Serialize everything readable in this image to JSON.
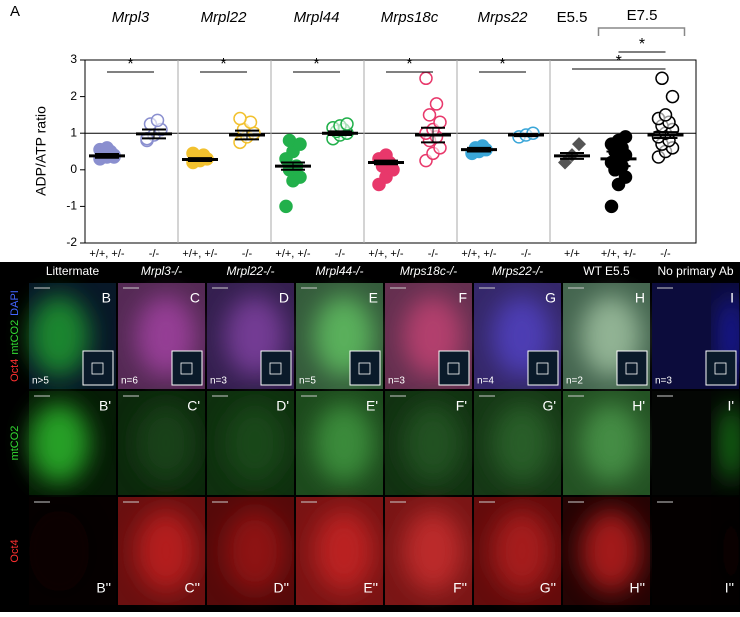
{
  "chart_data": {
    "type": "strip",
    "panel_label": "A",
    "ylabel": "ADP/ATP ratio",
    "ylim": [
      -2,
      3
    ],
    "yticks": [
      3,
      2,
      1,
      0,
      -1,
      -2
    ],
    "refline": 1,
    "group_bracket": "E7.5",
    "groups": [
      {
        "label": "Mrpl3",
        "italic": true,
        "categories": [
          {
            "name": "+/+, +/-",
            "color": "#8a8fcf",
            "marker": "circle",
            "filled": true,
            "mean": 0.38,
            "sem": 0.05,
            "values": [
              0.3,
              0.35,
              0.4,
              0.45,
              0.5,
              0.55,
              0.6,
              0.35
            ]
          },
          {
            "name": "-/-",
            "color": "#8a8fcf",
            "marker": "circle",
            "filled": false,
            "mean": 0.98,
            "sem": 0.12,
            "values": [
              0.8,
              0.95,
              1.1,
              1.25,
              1.35,
              0.85
            ]
          }
        ]
      },
      {
        "label": "Mrpl22",
        "italic": true,
        "categories": [
          {
            "name": "+/+, +/-",
            "color": "#f2c12e",
            "marker": "circle",
            "filled": true,
            "mean": 0.28,
            "sem": 0.04,
            "values": [
              0.2,
              0.25,
              0.3,
              0.35,
              0.4,
              0.45
            ]
          },
          {
            "name": "-/-",
            "color": "#f2c12e",
            "marker": "circle",
            "filled": false,
            "mean": 0.95,
            "sem": 0.12,
            "values": [
              0.75,
              0.9,
              1.0,
              1.1,
              1.3,
              1.4
            ]
          }
        ]
      },
      {
        "label": "Mrpl44",
        "italic": true,
        "categories": [
          {
            "name": "+/+, +/-",
            "color": "#22b04b",
            "marker": "circle",
            "filled": true,
            "mean": 0.1,
            "sem": 0.1,
            "values": [
              -1.0,
              -0.3,
              -0.2,
              0,
              0.1,
              0.3,
              0.5,
              0.7,
              0.8
            ]
          },
          {
            "name": "-/-",
            "color": "#22b04b",
            "marker": "circle",
            "filled": false,
            "mean": 1.0,
            "sem": 0.05,
            "values": [
              0.85,
              0.95,
              1.0,
              1.05,
              1.1,
              1.15,
              1.2,
              1.25
            ]
          }
        ]
      },
      {
        "label": "Mrps18c",
        "italic": true,
        "categories": [
          {
            "name": "+/+, +/-",
            "color": "#e8386b",
            "marker": "circle",
            "filled": true,
            "mean": 0.2,
            "sem": 0.05,
            "values": [
              -0.4,
              -0.2,
              0,
              0.1,
              0.2,
              0.3,
              0.4
            ]
          },
          {
            "name": "-/-",
            "color": "#e8386b",
            "marker": "circle",
            "filled": false,
            "mean": 0.95,
            "sem": 0.2,
            "values": [
              0.25,
              0.45,
              0.6,
              0.8,
              0.9,
              1.0,
              1.1,
              1.3,
              1.5,
              1.8,
              2.5
            ]
          }
        ]
      },
      {
        "label": "Mrps22",
        "italic": true,
        "categories": [
          {
            "name": "+/+, +/-",
            "color": "#3aa6d8",
            "marker": "circle",
            "filled": true,
            "mean": 0.55,
            "sem": 0.05,
            "values": [
              0.45,
              0.5,
              0.55,
              0.6,
              0.65
            ]
          },
          {
            "name": "-/-",
            "color": "#3aa6d8",
            "marker": "circle",
            "filled": false,
            "mean": 0.95,
            "sem": 0.03,
            "values": [
              0.9,
              0.95,
              1.0
            ]
          }
        ]
      },
      {
        "label": "E5.5",
        "italic": false,
        "categories": [
          {
            "name": "+/+",
            "color": "#555555",
            "marker": "diamond",
            "filled": true,
            "mean": 0.38,
            "sem": 0.08,
            "values": [
              0.2,
              0.4,
              0.7
            ]
          }
        ]
      },
      {
        "label": "E7.5",
        "italic": false,
        "categories": [
          {
            "name": "+/+, +/-",
            "color": "#000000",
            "marker": "circle",
            "filled": true,
            "mean": 0.3,
            "sem": 0.2,
            "values": [
              -1.0,
              -0.4,
              -0.2,
              0,
              0.1,
              0.2,
              0.3,
              0.4,
              0.5,
              0.6,
              0.7,
              0.8,
              0.9
            ]
          },
          {
            "name": "-/-",
            "color": "#000000",
            "marker": "circle",
            "filled": false,
            "mean": 0.95,
            "sem": 0.08,
            "values": [
              0.35,
              0.5,
              0.6,
              0.7,
              0.8,
              0.9,
              1.0,
              1.1,
              1.2,
              1.3,
              1.4,
              1.5,
              2.0,
              2.5
            ]
          }
        ]
      }
    ],
    "significance": [
      "*",
      "*",
      "*",
      "*",
      "*",
      "*",
      "*"
    ]
  },
  "images": {
    "row_labels": [
      [
        "Oct4",
        "mtCO2",
        "DAPI"
      ],
      [
        "mtCO2"
      ],
      [
        "Oct4"
      ]
    ],
    "columns": [
      {
        "header": "Littermate",
        "italic": false,
        "n": "n>5",
        "panels": [
          "B",
          "B'",
          "B''"
        ]
      },
      {
        "header": "Mrpl3-/-",
        "italic": true,
        "n": "n=6",
        "panels": [
          "C",
          "C'",
          "C''"
        ]
      },
      {
        "header": "Mrpl22-/-",
        "italic": true,
        "n": "n=3",
        "panels": [
          "D",
          "D'",
          "D''"
        ]
      },
      {
        "header": "Mrpl44-/-",
        "italic": true,
        "n": "n=5",
        "panels": [
          "E",
          "E'",
          "E''"
        ]
      },
      {
        "header": "Mrps18c-/-",
        "italic": true,
        "n": "n=3",
        "panels": [
          "F",
          "F'",
          "F''"
        ]
      },
      {
        "header": "Mrps22-/-",
        "italic": true,
        "n": "n=4",
        "panels": [
          "G",
          "G'",
          "G''"
        ]
      },
      {
        "header": "WT E5.5",
        "italic": false,
        "n": "n=2",
        "panels": [
          "H",
          "H'",
          "H''"
        ]
      },
      {
        "header": "No primary Ab",
        "italic": false,
        "n": "n=3",
        "panels": [
          "I",
          "I'",
          "I''"
        ]
      }
    ]
  }
}
